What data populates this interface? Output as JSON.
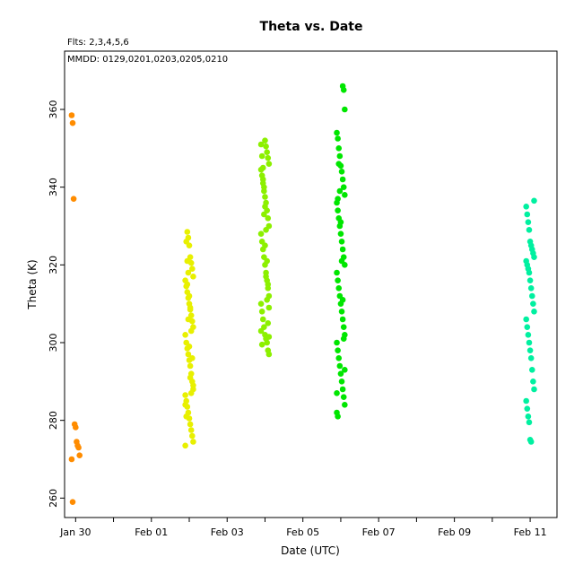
{
  "chart_data": {
    "type": "scatter",
    "title": "Theta  vs. Date",
    "annotations": [
      "Flts: 2,3,4,5,6",
      "MMDD: 0129,0201,0203,0205,0210"
    ],
    "xlabel": "Date (UTC)",
    "ylabel": "Theta (K)",
    "xlim": [
      "2020-01-29T17:00",
      "2020-02-11T17:00"
    ],
    "ylim": [
      255,
      375
    ],
    "x_ticks": [
      "2020-01-30",
      "2020-01-31",
      "2020-02-01",
      "2020-02-02",
      "2020-02-03",
      "2020-02-04",
      "2020-02-05",
      "2020-02-06",
      "2020-02-07",
      "2020-02-08",
      "2020-02-09",
      "2020-02-10",
      "2020-02-11"
    ],
    "x_tick_labels": [
      "Jan 30",
      "",
      "Feb 01",
      "",
      "Feb 03",
      "",
      "Feb 05",
      "",
      "Feb 07",
      "",
      "Feb 09",
      "",
      "Feb 11"
    ],
    "y_ticks": [
      260,
      280,
      300,
      320,
      340,
      360
    ],
    "grid": false,
    "series": [
      {
        "color": "#FF8C00",
        "points": [
          [
            "2020-01-30T00:00",
            358.5
          ],
          [
            "2020-01-30T00:00",
            356.5
          ],
          [
            "2020-01-30T00:00",
            337
          ],
          [
            "2020-01-30T00:00",
            279
          ],
          [
            "2020-01-30T00:00",
            278.2
          ],
          [
            "2020-01-30T00:00",
            274.5
          ],
          [
            "2020-01-30T00:00",
            273.5
          ],
          [
            "2020-01-30T00:00",
            273
          ],
          [
            "2020-01-30T00:00",
            271
          ],
          [
            "2020-01-30T00:00",
            270
          ],
          [
            "2020-01-30T00:00",
            259
          ]
        ]
      },
      {
        "color": "#E8F000",
        "points": [
          [
            "2020-02-02T00:00",
            328.5
          ],
          [
            "2020-02-02T00:00",
            327
          ],
          [
            "2020-02-02T00:00",
            325
          ],
          [
            "2020-02-02T00:00",
            322
          ],
          [
            "2020-02-02T00:00",
            320.5
          ],
          [
            "2020-02-02T00:00",
            319
          ],
          [
            "2020-02-02T00:00",
            317
          ],
          [
            "2020-02-02T00:00",
            316
          ],
          [
            "2020-02-02T00:00",
            314.5
          ],
          [
            "2020-02-02T00:00",
            313
          ],
          [
            "2020-02-02T00:00",
            311.5
          ],
          [
            "2020-02-02T00:00",
            310
          ],
          [
            "2020-02-02T00:00",
            308.5
          ],
          [
            "2020-02-02T00:00",
            307
          ],
          [
            "2020-02-02T00:00",
            305.5
          ],
          [
            "2020-02-02T00:00",
            304
          ],
          [
            "2020-02-02T00:00",
            302
          ],
          [
            "2020-02-02T00:00",
            300
          ],
          [
            "2020-02-02T00:00",
            298.5
          ],
          [
            "2020-02-02T00:00",
            297
          ],
          [
            "2020-02-02T00:00",
            295.5
          ],
          [
            "2020-02-02T00:00",
            294
          ],
          [
            "2020-02-02T00:00",
            292
          ],
          [
            "2020-02-02T00:00",
            290
          ],
          [
            "2020-02-02T00:00",
            288
          ],
          [
            "2020-02-02T00:00",
            286.5
          ],
          [
            "2020-02-02T00:00",
            285
          ],
          [
            "2020-02-02T00:00",
            283.5
          ],
          [
            "2020-02-02T00:00",
            282
          ],
          [
            "2020-02-02T00:00",
            280.5
          ],
          [
            "2020-02-02T00:00",
            279
          ],
          [
            "2020-02-02T00:00",
            277.5
          ],
          [
            "2020-02-02T00:00",
            276
          ],
          [
            "2020-02-02T00:00",
            274.5
          ],
          [
            "2020-02-02T00:00",
            273.5
          ],
          [
            "2020-02-02T00:00",
            326
          ],
          [
            "2020-02-02T00:00",
            321
          ],
          [
            "2020-02-02T00:00",
            318
          ],
          [
            "2020-02-02T00:00",
            312
          ],
          [
            "2020-02-02T00:00",
            309
          ],
          [
            "2020-02-02T00:00",
            303
          ],
          [
            "2020-02-02T00:00",
            296
          ],
          [
            "2020-02-02T00:00",
            289
          ],
          [
            "2020-02-02T00:00",
            284
          ],
          [
            "2020-02-02T00:00",
            281
          ],
          [
            "2020-02-02T00:00",
            315
          ],
          [
            "2020-02-02T00:00",
            306
          ],
          [
            "2020-02-02T00:00",
            299
          ],
          [
            "2020-02-02T00:00",
            291
          ],
          [
            "2020-02-02T00:00",
            287
          ]
        ]
      },
      {
        "color": "#8CF000",
        "points": [
          [
            "2020-02-04T00:00",
            352
          ],
          [
            "2020-02-04T00:00",
            350.5
          ],
          [
            "2020-02-04T00:00",
            349
          ],
          [
            "2020-02-04T00:00",
            347.5
          ],
          [
            "2020-02-04T00:00",
            346
          ],
          [
            "2020-02-04T00:00",
            344.5
          ],
          [
            "2020-02-04T00:00",
            343
          ],
          [
            "2020-02-04T00:00",
            341
          ],
          [
            "2020-02-04T00:00",
            339
          ],
          [
            "2020-02-04T00:00",
            337.5
          ],
          [
            "2020-02-04T00:00",
            336
          ],
          [
            "2020-02-04T00:00",
            334
          ],
          [
            "2020-02-04T00:00",
            332
          ],
          [
            "2020-02-04T00:00",
            330
          ],
          [
            "2020-02-04T00:00",
            328
          ],
          [
            "2020-02-04T00:00",
            326
          ],
          [
            "2020-02-04T00:00",
            324
          ],
          [
            "2020-02-04T00:00",
            322
          ],
          [
            "2020-02-04T00:00",
            320
          ],
          [
            "2020-02-04T00:00",
            318
          ],
          [
            "2020-02-04T00:00",
            316
          ],
          [
            "2020-02-04T00:00",
            314
          ],
          [
            "2020-02-04T00:00",
            312
          ],
          [
            "2020-02-04T00:00",
            310
          ],
          [
            "2020-02-04T00:00",
            308
          ],
          [
            "2020-02-04T00:00",
            306
          ],
          [
            "2020-02-04T00:00",
            304
          ],
          [
            "2020-02-04T00:00",
            302
          ],
          [
            "2020-02-04T00:00",
            301
          ],
          [
            "2020-02-04T00:00",
            300
          ],
          [
            "2020-02-04T00:00",
            298
          ],
          [
            "2020-02-04T00:00",
            297
          ],
          [
            "2020-02-04T00:00",
            351
          ],
          [
            "2020-02-04T00:00",
            348
          ],
          [
            "2020-02-04T00:00",
            345
          ],
          [
            "2020-02-04T00:00",
            340
          ],
          [
            "2020-02-04T00:00",
            335
          ],
          [
            "2020-02-04T00:00",
            329
          ],
          [
            "2020-02-04T00:00",
            321
          ],
          [
            "2020-02-04T00:00",
            315
          ],
          [
            "2020-02-04T00:00",
            309
          ],
          [
            "2020-02-04T00:00",
            303
          ],
          [
            "2020-02-04T00:00",
            299.5
          ],
          [
            "2020-02-04T00:00",
            342
          ],
          [
            "2020-02-04T00:00",
            333
          ],
          [
            "2020-02-04T00:00",
            325
          ],
          [
            "2020-02-04T00:00",
            317
          ],
          [
            "2020-02-04T00:00",
            311
          ],
          [
            "2020-02-04T00:00",
            305
          ],
          [
            "2020-02-04T00:00",
            301.5
          ]
        ]
      },
      {
        "color": "#00E600",
        "points": [
          [
            "2020-02-06T00:00",
            366
          ],
          [
            "2020-02-06T00:00",
            365
          ],
          [
            "2020-02-06T00:00",
            360
          ],
          [
            "2020-02-06T00:00",
            354
          ],
          [
            "2020-02-06T00:00",
            352.5
          ],
          [
            "2020-02-06T00:00",
            350
          ],
          [
            "2020-02-06T00:00",
            348
          ],
          [
            "2020-02-06T00:00",
            345.5
          ],
          [
            "2020-02-06T00:00",
            344
          ],
          [
            "2020-02-06T00:00",
            342
          ],
          [
            "2020-02-06T00:00",
            340
          ],
          [
            "2020-02-06T00:00",
            338
          ],
          [
            "2020-02-06T00:00",
            336
          ],
          [
            "2020-02-06T00:00",
            334
          ],
          [
            "2020-02-06T00:00",
            332
          ],
          [
            "2020-02-06T00:00",
            330
          ],
          [
            "2020-02-06T00:00",
            328
          ],
          [
            "2020-02-06T00:00",
            326
          ],
          [
            "2020-02-06T00:00",
            324
          ],
          [
            "2020-02-06T00:00",
            322
          ],
          [
            "2020-02-06T00:00",
            320
          ],
          [
            "2020-02-06T00:00",
            318
          ],
          [
            "2020-02-06T00:00",
            316
          ],
          [
            "2020-02-06T00:00",
            314
          ],
          [
            "2020-02-06T00:00",
            312
          ],
          [
            "2020-02-06T00:00",
            310
          ],
          [
            "2020-02-06T00:00",
            308
          ],
          [
            "2020-02-06T00:00",
            306
          ],
          [
            "2020-02-06T00:00",
            304
          ],
          [
            "2020-02-06T00:00",
            302
          ],
          [
            "2020-02-06T00:00",
            300
          ],
          [
            "2020-02-06T00:00",
            298
          ],
          [
            "2020-02-06T00:00",
            296
          ],
          [
            "2020-02-06T00:00",
            294
          ],
          [
            "2020-02-06T00:00",
            292
          ],
          [
            "2020-02-06T00:00",
            290
          ],
          [
            "2020-02-06T00:00",
            288
          ],
          [
            "2020-02-06T00:00",
            286
          ],
          [
            "2020-02-06T00:00",
            284
          ],
          [
            "2020-02-06T00:00",
            282
          ],
          [
            "2020-02-06T00:00",
            281
          ],
          [
            "2020-02-06T00:00",
            346
          ],
          [
            "2020-02-06T00:00",
            339
          ],
          [
            "2020-02-06T00:00",
            331
          ],
          [
            "2020-02-06T00:00",
            321
          ],
          [
            "2020-02-06T00:00",
            311
          ],
          [
            "2020-02-06T00:00",
            301
          ],
          [
            "2020-02-06T00:00",
            293
          ],
          [
            "2020-02-06T00:00",
            287
          ],
          [
            "2020-02-06T00:00",
            337
          ]
        ]
      },
      {
        "color": "#00F0A0",
        "points": [
          [
            "2020-02-11T00:00",
            336.5
          ],
          [
            "2020-02-11T00:00",
            335
          ],
          [
            "2020-02-11T00:00",
            333
          ],
          [
            "2020-02-11T00:00",
            331
          ],
          [
            "2020-02-11T00:00",
            329
          ],
          [
            "2020-02-11T00:00",
            326
          ],
          [
            "2020-02-11T00:00",
            325
          ],
          [
            "2020-02-11T00:00",
            324
          ],
          [
            "2020-02-11T00:00",
            323
          ],
          [
            "2020-02-11T00:00",
            322
          ],
          [
            "2020-02-11T00:00",
            321
          ],
          [
            "2020-02-11T00:00",
            320
          ],
          [
            "2020-02-11T00:00",
            319
          ],
          [
            "2020-02-11T00:00",
            318
          ],
          [
            "2020-02-11T00:00",
            316
          ],
          [
            "2020-02-11T00:00",
            314
          ],
          [
            "2020-02-11T00:00",
            312
          ],
          [
            "2020-02-11T00:00",
            310
          ],
          [
            "2020-02-11T00:00",
            308
          ],
          [
            "2020-02-11T00:00",
            306
          ],
          [
            "2020-02-11T00:00",
            304
          ],
          [
            "2020-02-11T00:00",
            302
          ],
          [
            "2020-02-11T00:00",
            300
          ],
          [
            "2020-02-11T00:00",
            298
          ],
          [
            "2020-02-11T00:00",
            296
          ],
          [
            "2020-02-11T00:00",
            293
          ],
          [
            "2020-02-11T00:00",
            290
          ],
          [
            "2020-02-11T00:00",
            288
          ],
          [
            "2020-02-11T00:00",
            285
          ],
          [
            "2020-02-11T00:00",
            283
          ],
          [
            "2020-02-11T00:00",
            281
          ],
          [
            "2020-02-11T00:00",
            279.5
          ],
          [
            "2020-02-11T00:00",
            275
          ],
          [
            "2020-02-11T00:00",
            274.5
          ]
        ]
      }
    ]
  }
}
